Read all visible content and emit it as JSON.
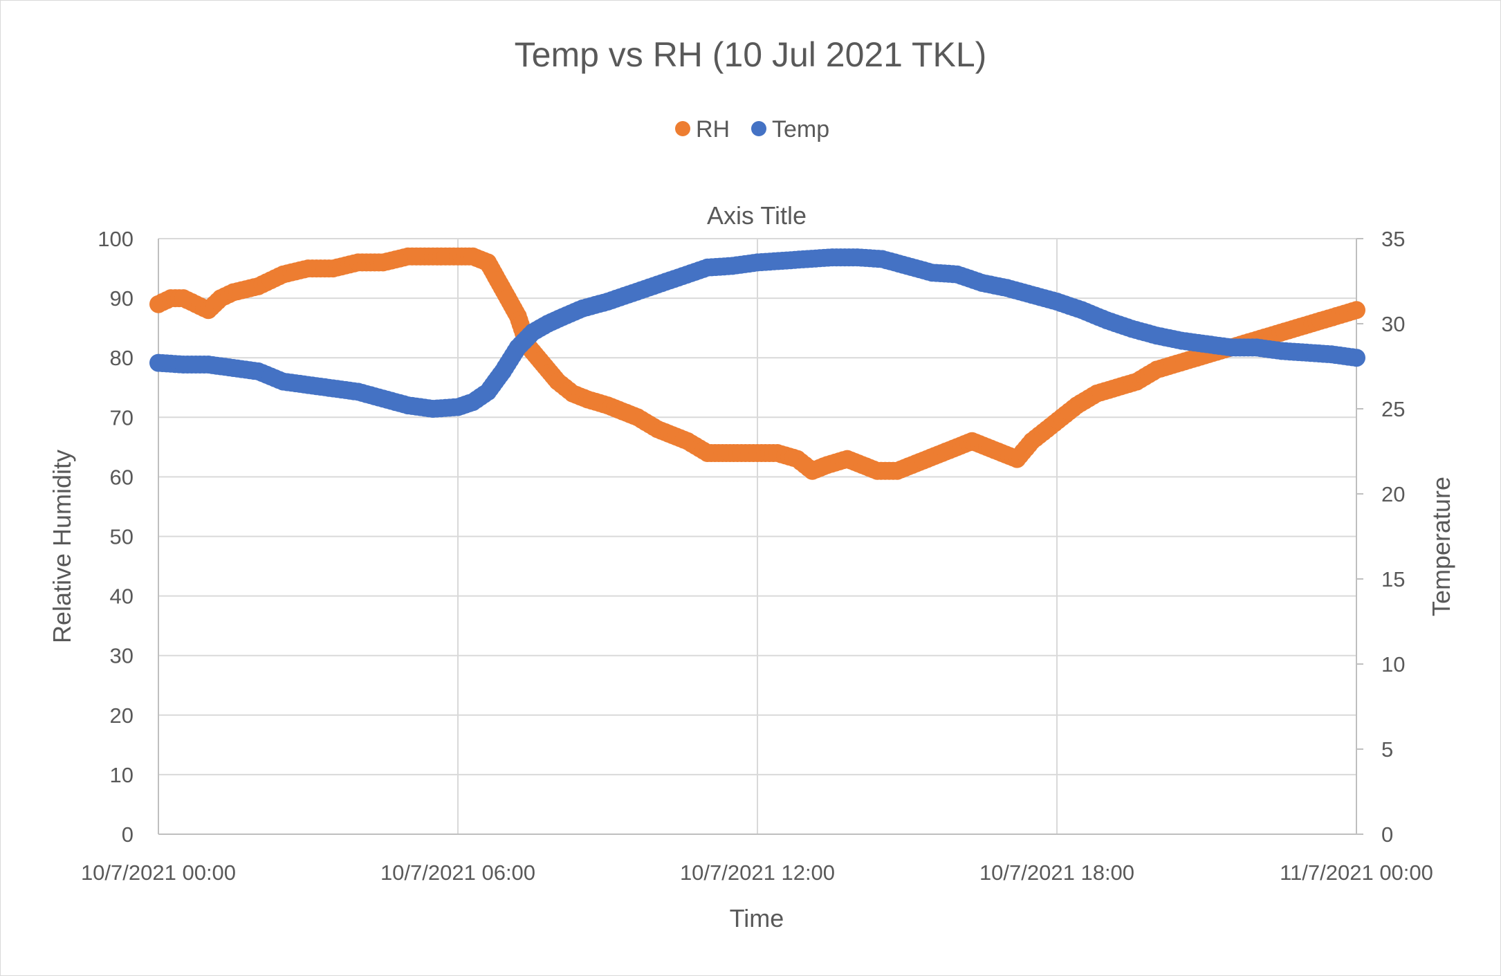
{
  "chart_data": {
    "type": "scatter",
    "title": "Temp vs RH (10 Jul 2021 TKL)",
    "xlabel": "Time",
    "ylabel": "Relative Humidity",
    "y2label": "Temperature",
    "secondary_x_title": "Axis Title",
    "legend_position": "top",
    "grid": true,
    "xlim": [
      "10/7/2021 00:00",
      "11/7/2021 00:00"
    ],
    "ylim": [
      0,
      100
    ],
    "y2lim": [
      0,
      35
    ],
    "x_ticks": [
      "10/7/2021 00:00",
      "10/7/2021 06:00",
      "10/7/2021 12:00",
      "10/7/2021 18:00",
      "11/7/2021 00:00"
    ],
    "y_ticks": [
      "0",
      "10",
      "20",
      "30",
      "40",
      "50",
      "60",
      "70",
      "80",
      "90",
      "100"
    ],
    "y2_ticks": [
      "0",
      "5",
      "10",
      "15",
      "20",
      "25",
      "30",
      "35"
    ],
    "x_unit": "hours since 10/7/2021 00:00",
    "series": [
      {
        "name": "RH",
        "axis": "left",
        "color": "#ed7d31",
        "x": [
          0,
          0.25,
          0.5,
          0.75,
          1,
          1.25,
          1.5,
          2,
          2.5,
          3,
          3.5,
          4,
          4.5,
          5,
          5.5,
          6,
          6.3,
          6.6,
          6.8,
          7,
          7.2,
          7.4,
          7.6,
          7.8,
          8,
          8.3,
          8.6,
          9,
          9.3,
          9.6,
          10,
          10.3,
          10.6,
          11,
          11.3,
          11.6,
          12,
          12.4,
          12.8,
          13.1,
          13.4,
          13.8,
          14.1,
          14.4,
          14.8,
          15.1,
          15.4,
          15.7,
          16,
          16.3,
          16.6,
          16.9,
          17.2,
          17.5,
          17.8,
          18.1,
          18.4,
          18.8,
          19.2,
          19.6,
          20,
          20.4,
          20.8,
          21.2,
          21.6,
          22,
          22.4,
          22.8,
          23.2,
          23.6,
          24
        ],
        "y": [
          89,
          90,
          90,
          89,
          88,
          90,
          91,
          92,
          94,
          95,
          95,
          96,
          96,
          97,
          97,
          97,
          97,
          96,
          93,
          90,
          87,
          82,
          80,
          78,
          76,
          74,
          73,
          72,
          71,
          70,
          68,
          67,
          66,
          64,
          64,
          64,
          64,
          64,
          63,
          61,
          62,
          63,
          62,
          61,
          61,
          62,
          63,
          64,
          65,
          66,
          65,
          64,
          63,
          66,
          68,
          70,
          72,
          74,
          75,
          76,
          78,
          79,
          80,
          81,
          82,
          83,
          84,
          85,
          86,
          87,
          88
        ]
      },
      {
        "name": "Temp",
        "axis": "right",
        "color": "#4472c4",
        "x": [
          0,
          0.5,
          1,
          1.5,
          2,
          2.5,
          3,
          3.5,
          4,
          4.5,
          5,
          5.5,
          6,
          6.3,
          6.6,
          6.9,
          7.2,
          7.5,
          7.8,
          8.1,
          8.5,
          9,
          9.5,
          10,
          10.5,
          11,
          11.5,
          12,
          12.5,
          13,
          13.5,
          14,
          14.5,
          15,
          15.5,
          16,
          16.5,
          17,
          17.5,
          18,
          18.5,
          19,
          19.5,
          20,
          20.5,
          21,
          21.5,
          22,
          22.5,
          23,
          23.5,
          24
        ],
        "y": [
          27.7,
          27.6,
          27.6,
          27.4,
          27.2,
          26.6,
          26.4,
          26.2,
          26.0,
          25.6,
          25.2,
          25.0,
          25.1,
          25.4,
          26.0,
          27.2,
          28.6,
          29.5,
          30.0,
          30.4,
          30.9,
          31.3,
          31.8,
          32.3,
          32.8,
          33.3,
          33.4,
          33.6,
          33.7,
          33.8,
          33.9,
          33.9,
          33.8,
          33.4,
          33.0,
          32.9,
          32.4,
          32.1,
          31.7,
          31.3,
          30.8,
          30.2,
          29.7,
          29.3,
          29.0,
          28.8,
          28.6,
          28.6,
          28.4,
          28.3,
          28.2,
          28.0
        ]
      }
    ]
  }
}
